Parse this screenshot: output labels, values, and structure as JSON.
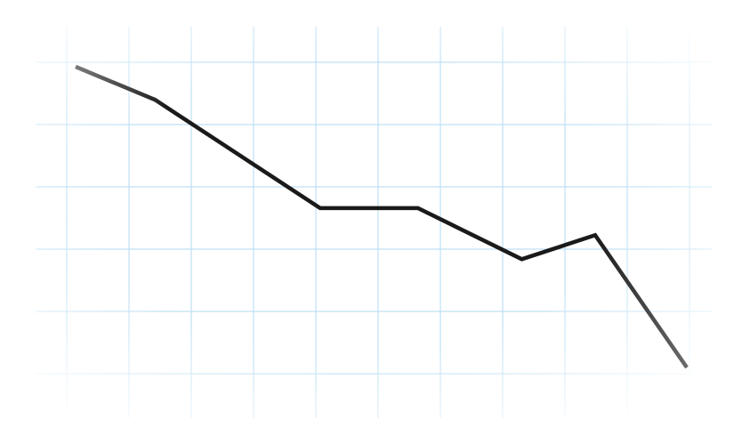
{
  "chart_data": {
    "type": "line",
    "title": "",
    "xlabel": "",
    "ylabel": "",
    "x": [
      0,
      0.13,
      0.4,
      0.56,
      0.73,
      0.85,
      1.0
    ],
    "series": [
      {
        "values": [
          1.0,
          0.89,
          0.53,
          0.53,
          0.36,
          0.44,
          0.0
        ]
      }
    ],
    "xlim": [
      0,
      1
    ],
    "ylim": [
      0,
      1
    ],
    "grid": true,
    "legend": "none",
    "tick_labels_visible": false
  },
  "colors": {
    "line": "#1a1a1a",
    "line_fade_start": "#7a7a7a",
    "line_fade_end": "#6a6a6a",
    "grid": "#bfe0f5",
    "background": "#ffffff"
  }
}
